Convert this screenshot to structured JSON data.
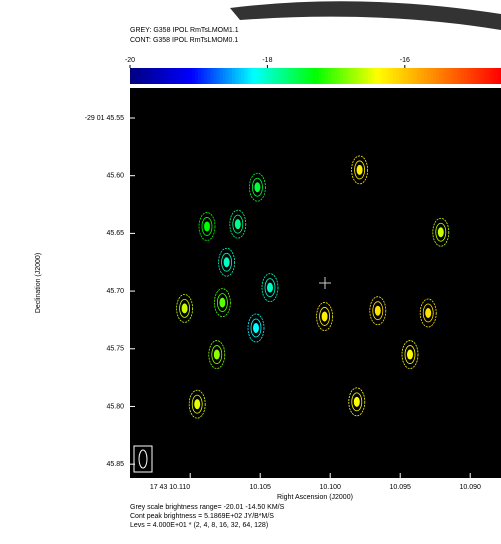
{
  "chart_data": {
    "type": "scatter",
    "title_lines": [
      "GREY: G358 IPOL  RmTsLMOM1.1",
      "CONT: G358 IPOL  RmTsLMOM0.1"
    ],
    "x_label": "Right Ascension (J2000)",
    "y_label": "Declination (J2000)",
    "notes": [
      "Grey scale brightness range= -20.01 -14.50 KM/S",
      "Cont peak brightness = 5.1869E+02 JY/B*M/S",
      "Levs = 4.000E+01 * (2, 4, 8, 16, 32, 64, 128)"
    ],
    "x": [
      10.1104,
      10.1095,
      10.1088,
      10.1077,
      10.1081,
      10.1074,
      10.1066,
      10.1052,
      10.1053,
      10.1043,
      10.1004,
      10.0979,
      10.0966,
      10.0981,
      10.0943,
      10.093,
      10.0921
    ],
    "y": [
      45.715,
      45.798,
      45.644,
      45.71,
      45.755,
      45.675,
      45.642,
      45.61,
      45.732,
      45.697,
      45.722,
      45.595,
      45.717,
      45.796,
      45.755,
      45.719,
      45.649
    ],
    "values": [
      -16.6,
      -16.5,
      -17.3,
      -17.0,
      -16.8,
      -18.0,
      -17.8,
      -17.5,
      -18.2,
      -18.0,
      -16.3,
      -16.3,
      -16.2,
      -16.4,
      -16.4,
      -16.2,
      -16.6
    ],
    "xlim": [
      10.1143,
      10.0878
    ],
    "xticks": [
      {
        "value": 10.11,
        "label": "17 43 10.110"
      },
      10.105,
      {
        "value": 10.1,
        "label": "10.100"
      },
      10.095,
      {
        "value": 10.09,
        "label": "10.090"
      }
    ],
    "ylim": [
      45.524,
      45.862
    ],
    "yticks": [
      {
        "value": 45.55,
        "label": "-29 01 45.55"
      },
      {
        "value": 45.6,
        "label": "45.60"
      },
      {
        "value": 45.65,
        "label": "45.65"
      },
      {
        "value": 45.7,
        "label": "45.70"
      },
      {
        "value": 45.75,
        "label": "45.75"
      },
      {
        "value": 45.8,
        "label": "45.80"
      },
      {
        "value": 45.85,
        "label": "45.85"
      }
    ],
    "colorbar_lim": [
      -20,
      -14.6
    ],
    "colorbar_ticks": [
      -20,
      -18,
      -16
    ],
    "colormap": [
      "#000080",
      "#0000ff",
      "#00ffff",
      "#00ff00",
      "#ffff00",
      "#ff8000",
      "#ff0000"
    ]
  }
}
